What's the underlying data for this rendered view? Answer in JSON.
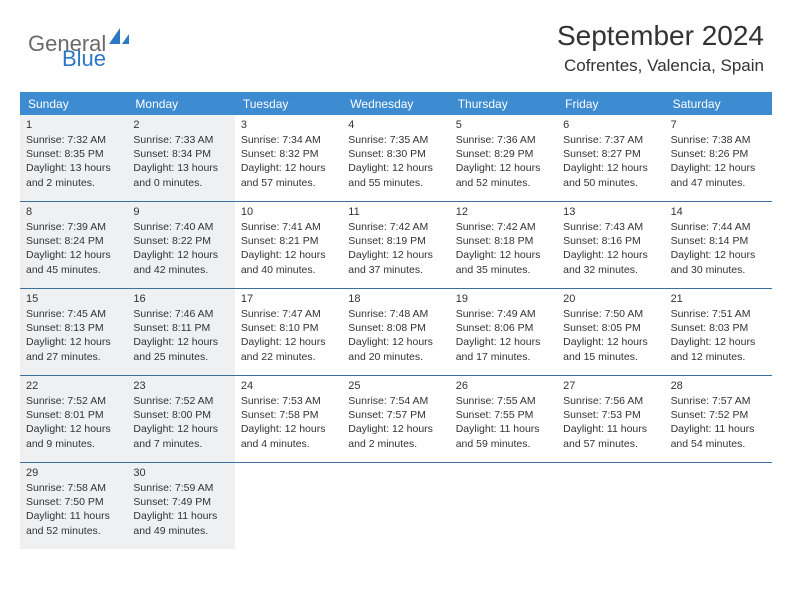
{
  "logo": {
    "text1": "General",
    "text2": "Blue"
  },
  "title": "September 2024",
  "subtitle": "Cofrentes, Valencia, Spain",
  "colors": {
    "header_bg": "#3d8bd0",
    "header_text": "#ffffff",
    "shade_bg": "#eef0f1",
    "week_border": "#3d6ea0",
    "body_text": "#333333",
    "logo_gray": "#6a6a6a",
    "logo_blue": "#2d78c4"
  },
  "dayNames": [
    "Sunday",
    "Monday",
    "Tuesday",
    "Wednesday",
    "Thursday",
    "Friday",
    "Saturday"
  ],
  "weeks": [
    [
      {
        "n": "1",
        "sr": "7:32 AM",
        "ss": "8:35 PM",
        "dl": "13 hours and 2 minutes."
      },
      {
        "n": "2",
        "sr": "7:33 AM",
        "ss": "8:34 PM",
        "dl": "13 hours and 0 minutes."
      },
      {
        "n": "3",
        "sr": "7:34 AM",
        "ss": "8:32 PM",
        "dl": "12 hours and 57 minutes."
      },
      {
        "n": "4",
        "sr": "7:35 AM",
        "ss": "8:30 PM",
        "dl": "12 hours and 55 minutes."
      },
      {
        "n": "5",
        "sr": "7:36 AM",
        "ss": "8:29 PM",
        "dl": "12 hours and 52 minutes."
      },
      {
        "n": "6",
        "sr": "7:37 AM",
        "ss": "8:27 PM",
        "dl": "12 hours and 50 minutes."
      },
      {
        "n": "7",
        "sr": "7:38 AM",
        "ss": "8:26 PM",
        "dl": "12 hours and 47 minutes."
      }
    ],
    [
      {
        "n": "8",
        "sr": "7:39 AM",
        "ss": "8:24 PM",
        "dl": "12 hours and 45 minutes."
      },
      {
        "n": "9",
        "sr": "7:40 AM",
        "ss": "8:22 PM",
        "dl": "12 hours and 42 minutes."
      },
      {
        "n": "10",
        "sr": "7:41 AM",
        "ss": "8:21 PM",
        "dl": "12 hours and 40 minutes."
      },
      {
        "n": "11",
        "sr": "7:42 AM",
        "ss": "8:19 PM",
        "dl": "12 hours and 37 minutes."
      },
      {
        "n": "12",
        "sr": "7:42 AM",
        "ss": "8:18 PM",
        "dl": "12 hours and 35 minutes."
      },
      {
        "n": "13",
        "sr": "7:43 AM",
        "ss": "8:16 PM",
        "dl": "12 hours and 32 minutes."
      },
      {
        "n": "14",
        "sr": "7:44 AM",
        "ss": "8:14 PM",
        "dl": "12 hours and 30 minutes."
      }
    ],
    [
      {
        "n": "15",
        "sr": "7:45 AM",
        "ss": "8:13 PM",
        "dl": "12 hours and 27 minutes."
      },
      {
        "n": "16",
        "sr": "7:46 AM",
        "ss": "8:11 PM",
        "dl": "12 hours and 25 minutes."
      },
      {
        "n": "17",
        "sr": "7:47 AM",
        "ss": "8:10 PM",
        "dl": "12 hours and 22 minutes."
      },
      {
        "n": "18",
        "sr": "7:48 AM",
        "ss": "8:08 PM",
        "dl": "12 hours and 20 minutes."
      },
      {
        "n": "19",
        "sr": "7:49 AM",
        "ss": "8:06 PM",
        "dl": "12 hours and 17 minutes."
      },
      {
        "n": "20",
        "sr": "7:50 AM",
        "ss": "8:05 PM",
        "dl": "12 hours and 15 minutes."
      },
      {
        "n": "21",
        "sr": "7:51 AM",
        "ss": "8:03 PM",
        "dl": "12 hours and 12 minutes."
      }
    ],
    [
      {
        "n": "22",
        "sr": "7:52 AM",
        "ss": "8:01 PM",
        "dl": "12 hours and 9 minutes."
      },
      {
        "n": "23",
        "sr": "7:52 AM",
        "ss": "8:00 PM",
        "dl": "12 hours and 7 minutes."
      },
      {
        "n": "24",
        "sr": "7:53 AM",
        "ss": "7:58 PM",
        "dl": "12 hours and 4 minutes."
      },
      {
        "n": "25",
        "sr": "7:54 AM",
        "ss": "7:57 PM",
        "dl": "12 hours and 2 minutes."
      },
      {
        "n": "26",
        "sr": "7:55 AM",
        "ss": "7:55 PM",
        "dl": "11 hours and 59 minutes."
      },
      {
        "n": "27",
        "sr": "7:56 AM",
        "ss": "7:53 PM",
        "dl": "11 hours and 57 minutes."
      },
      {
        "n": "28",
        "sr": "7:57 AM",
        "ss": "7:52 PM",
        "dl": "11 hours and 54 minutes."
      }
    ],
    [
      {
        "n": "29",
        "sr": "7:58 AM",
        "ss": "7:50 PM",
        "dl": "11 hours and 52 minutes."
      },
      {
        "n": "30",
        "sr": "7:59 AM",
        "ss": "7:49 PM",
        "dl": "11 hours and 49 minutes."
      },
      null,
      null,
      null,
      null,
      null
    ]
  ],
  "labels": {
    "sunrise": "Sunrise:",
    "sunset": "Sunset:",
    "daylight": "Daylight:"
  }
}
